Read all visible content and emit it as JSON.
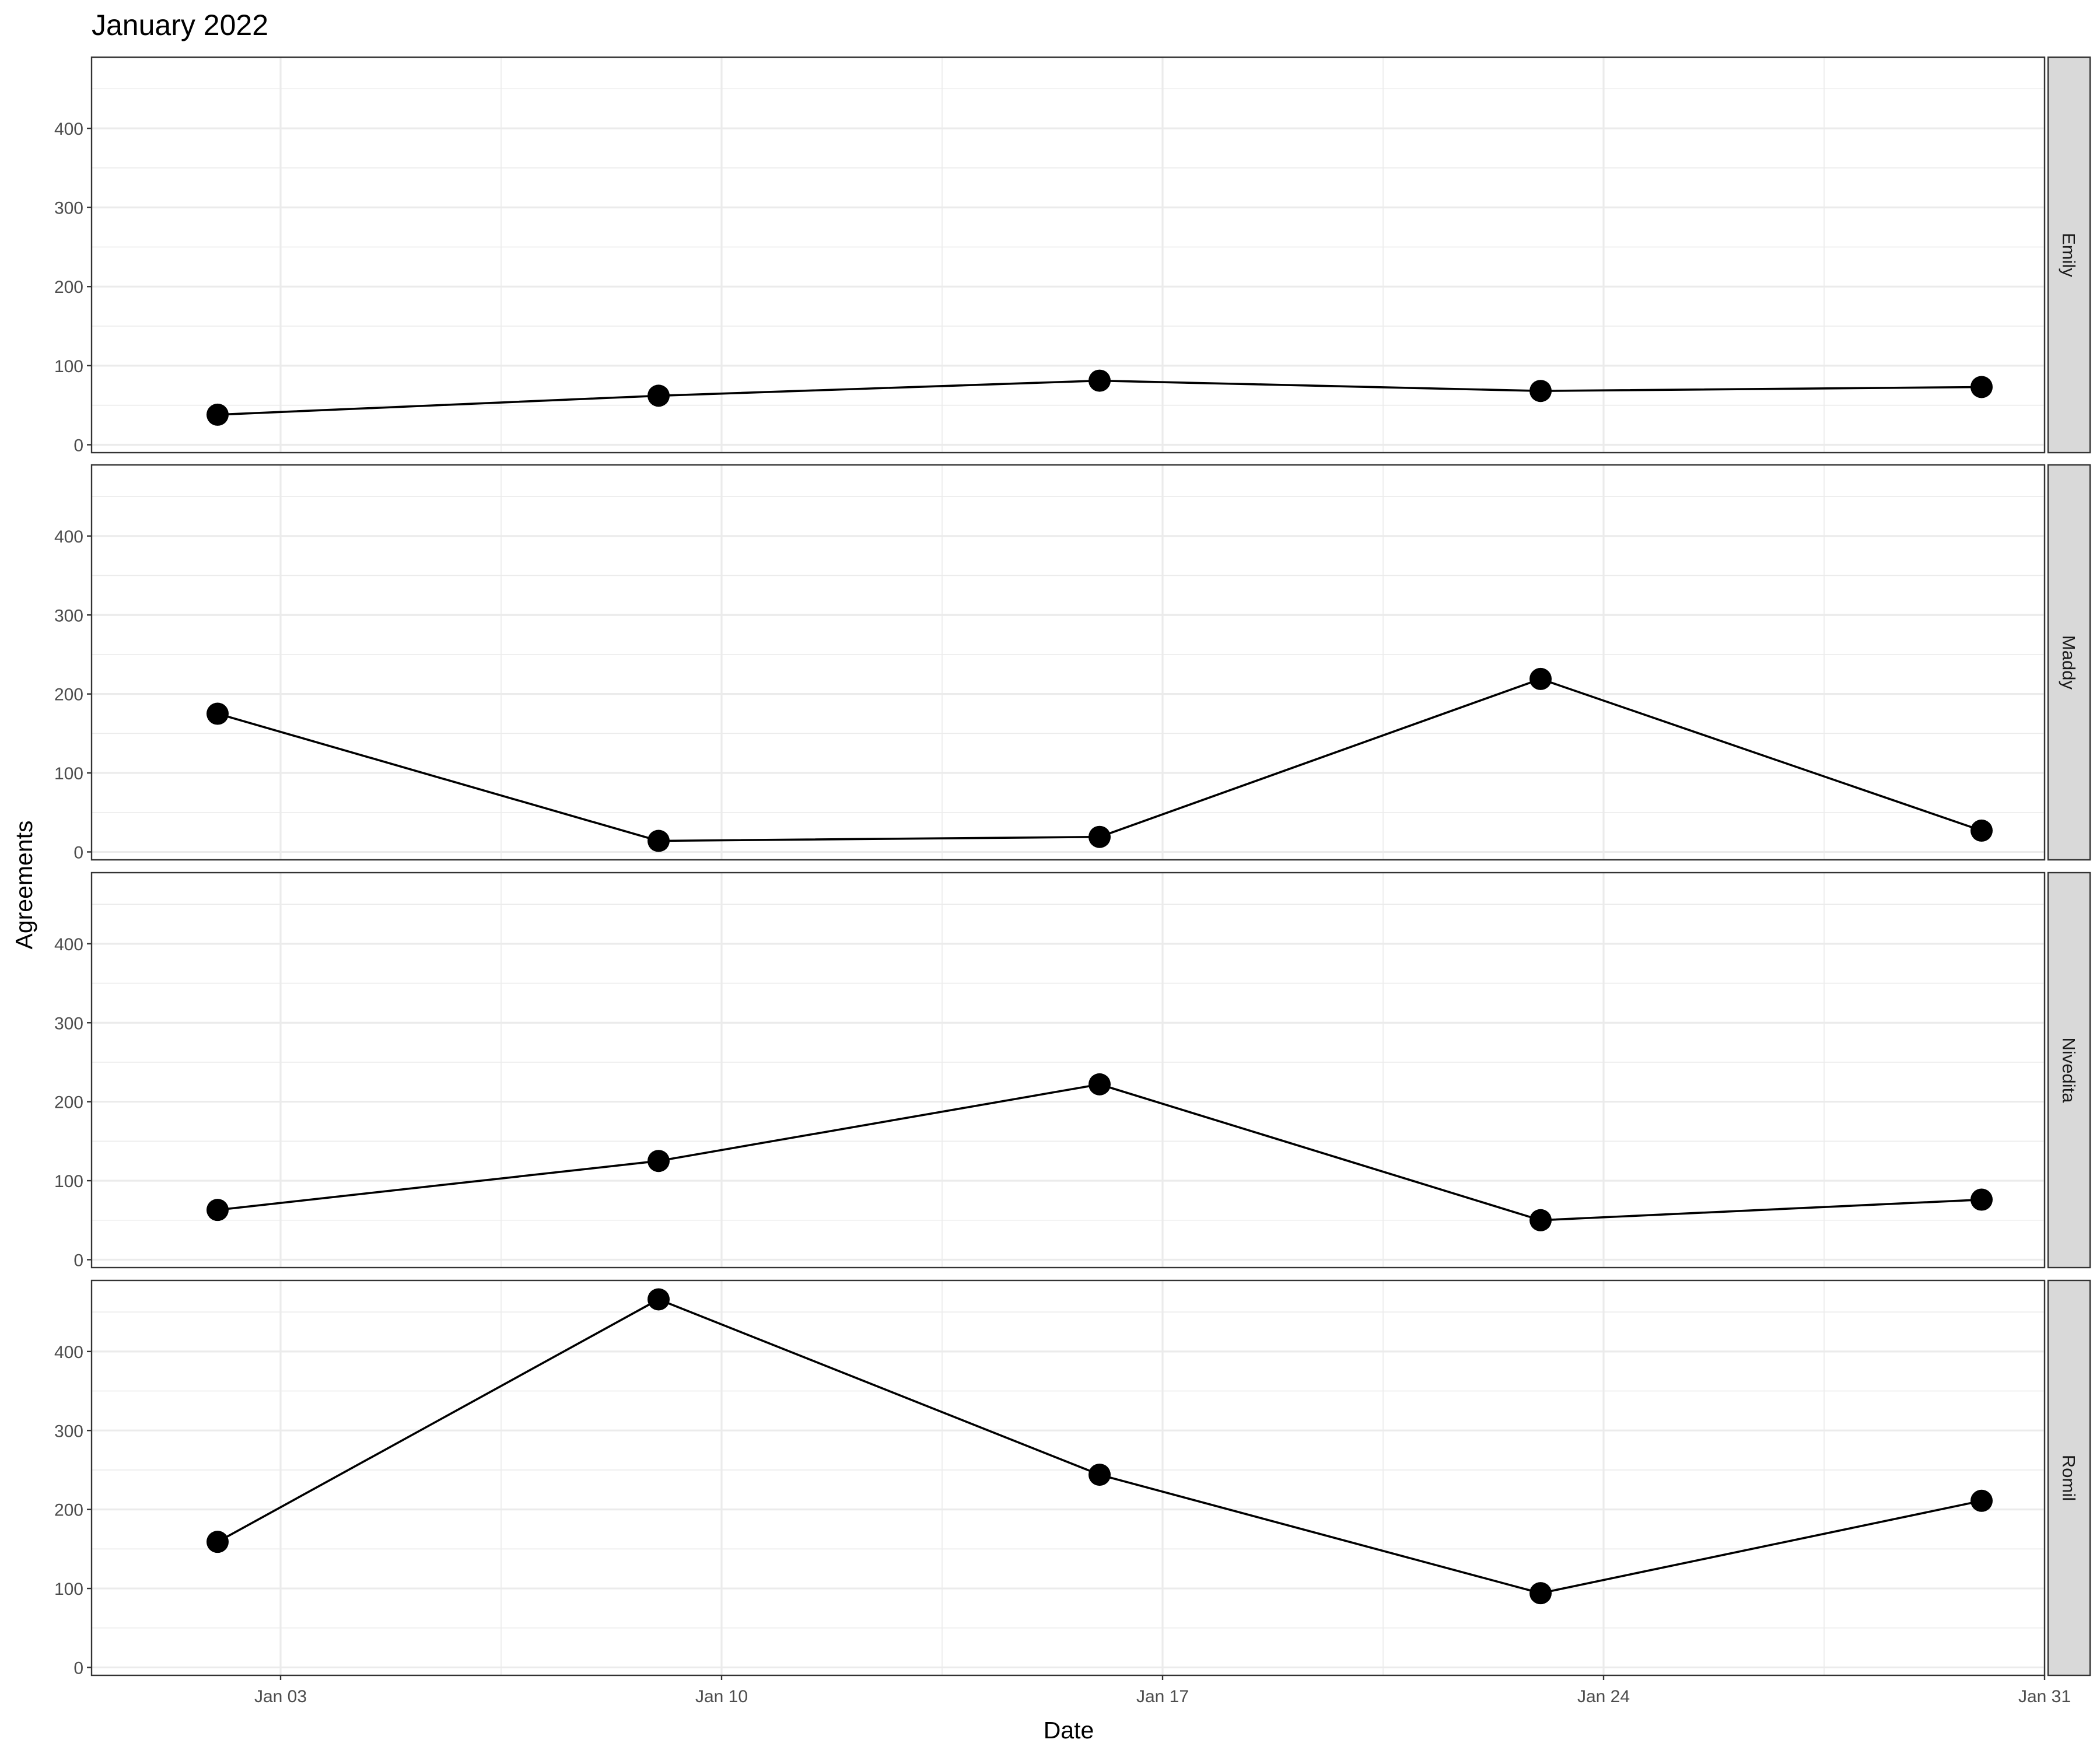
{
  "chart_data": {
    "type": "line",
    "title": "January 2022",
    "xlabel": "Date",
    "ylabel": "Agreements",
    "x": [
      "2022-01-02",
      "2022-01-09",
      "2022-01-16",
      "2022-01-23",
      "2022-01-30"
    ],
    "x_ticks": [
      "Jan 03",
      "Jan 10",
      "Jan 17",
      "Jan 24",
      "Jan 31"
    ],
    "x_tick_dates": [
      "2022-01-03",
      "2022-01-10",
      "2022-01-17",
      "2022-01-24",
      "2022-01-31"
    ],
    "xlim": [
      "2021-12-31",
      "2022-01-31"
    ],
    "ylim": [
      -10,
      490
    ],
    "y_ticks": [
      0,
      100,
      200,
      300,
      400
    ],
    "grid": true,
    "facets": [
      {
        "name": "Emily",
        "values": [
          38,
          62,
          81,
          68,
          73
        ]
      },
      {
        "name": "Maddy",
        "values": [
          175,
          14,
          19,
          219,
          27
        ]
      },
      {
        "name": "Nivedita",
        "values": [
          63,
          125,
          222,
          50,
          76
        ]
      },
      {
        "name": "Romil",
        "values": [
          159,
          466,
          244,
          94,
          211
        ]
      }
    ]
  }
}
